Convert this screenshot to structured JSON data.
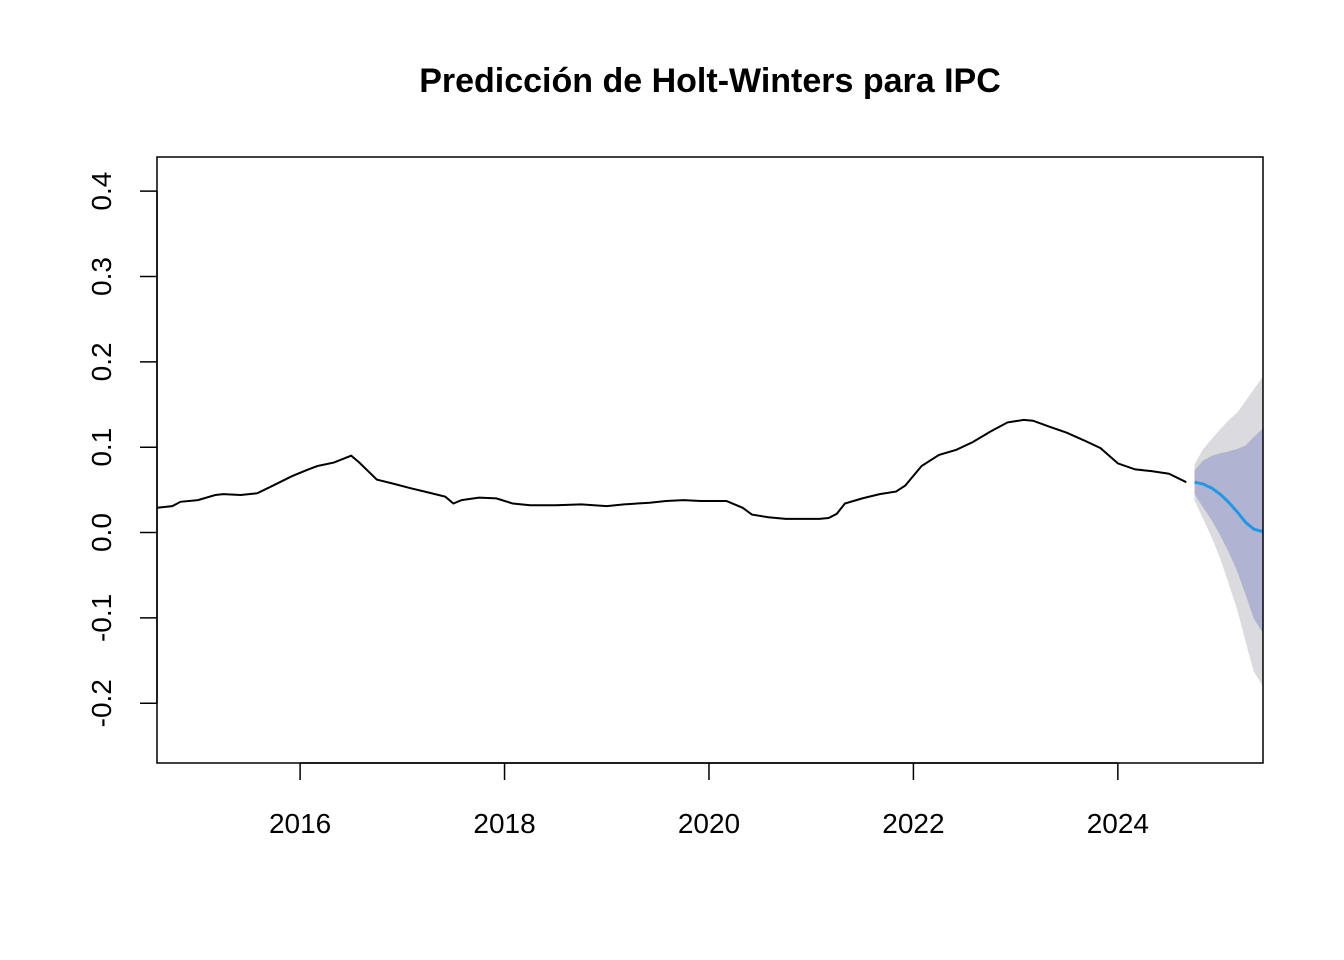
{
  "chart_data": {
    "type": "line",
    "title": "Predicción de Holt-Winters para IPC",
    "xlabel": "",
    "ylabel": "",
    "xlim": [
      2014.6,
      2025.42
    ],
    "ylim": [
      -0.27,
      0.44
    ],
    "x_ticks": [
      2016,
      2018,
      2020,
      2022,
      2024
    ],
    "x_tick_labels": [
      "2016",
      "2018",
      "2020",
      "2022",
      "2024"
    ],
    "y_ticks": [
      -0.2,
      -0.1,
      0.0,
      0.1,
      0.2,
      0.3,
      0.4
    ],
    "y_tick_labels": [
      "-0.2",
      "-0.1",
      "0.0",
      "0.1",
      "0.2",
      "0.3",
      "0.4"
    ],
    "grid": false,
    "legend": "none",
    "colors": {
      "observed": "#000000",
      "forecast": "#2297E6",
      "pi80": "#B0B4D2",
      "pi95": "#DBDBDF"
    },
    "series": [
      {
        "role": "observed",
        "x": [
          2014.6,
          2014.75,
          2014.83,
          2015.0,
          2015.17,
          2015.25,
          2015.42,
          2015.58,
          2015.75,
          2015.92,
          2016.08,
          2016.17,
          2016.33,
          2016.5,
          2016.58,
          2016.75,
          2016.92,
          2017.08,
          2017.25,
          2017.42,
          2017.5,
          2017.58,
          2017.75,
          2017.92,
          2018.08,
          2018.25,
          2018.5,
          2018.75,
          2019.0,
          2019.17,
          2019.42,
          2019.58,
          2019.75,
          2019.92,
          2020.17,
          2020.33,
          2020.42,
          2020.58,
          2020.75,
          2020.92,
          2021.08,
          2021.17,
          2021.25,
          2021.33,
          2021.5,
          2021.67,
          2021.83,
          2021.92,
          2022.08,
          2022.25,
          2022.42,
          2022.58,
          2022.75,
          2022.92,
          2023.08,
          2023.17,
          2023.33,
          2023.5,
          2023.67,
          2023.83,
          2024.0,
          2024.17,
          2024.33,
          2024.5,
          2024.67
        ],
        "values": [
          0.029,
          0.031,
          0.036,
          0.038,
          0.044,
          0.045,
          0.044,
          0.046,
          0.056,
          0.066,
          0.074,
          0.078,
          0.082,
          0.09,
          0.082,
          0.062,
          0.057,
          0.052,
          0.047,
          0.042,
          0.034,
          0.038,
          0.041,
          0.04,
          0.034,
          0.032,
          0.032,
          0.033,
          0.031,
          0.033,
          0.035,
          0.037,
          0.038,
          0.037,
          0.037,
          0.029,
          0.021,
          0.018,
          0.016,
          0.016,
          0.016,
          0.017,
          0.022,
          0.034,
          0.04,
          0.045,
          0.048,
          0.055,
          0.078,
          0.091,
          0.097,
          0.106,
          0.118,
          0.129,
          0.132,
          0.131,
          0.124,
          0.117,
          0.108,
          0.099,
          0.081,
          0.074,
          0.072,
          0.069,
          0.059
        ]
      },
      {
        "role": "forecast",
        "x": [
          2024.75,
          2024.83,
          2024.92,
          2025.0,
          2025.08,
          2025.17,
          2025.25,
          2025.33,
          2025.42
        ],
        "values": [
          0.059,
          0.057,
          0.052,
          0.045,
          0.036,
          0.024,
          0.012,
          0.004,
          0.001
        ],
        "pi80_lower": [
          0.045,
          0.03,
          0.014,
          -0.003,
          -0.022,
          -0.046,
          -0.073,
          -0.101,
          -0.118
        ],
        "pi80_upper": [
          0.073,
          0.084,
          0.09,
          0.093,
          0.095,
          0.098,
          0.102,
          0.112,
          0.122
        ],
        "pi95_lower": [
          0.038,
          0.017,
          -0.006,
          -0.03,
          -0.058,
          -0.091,
          -0.128,
          -0.163,
          -0.18
        ],
        "pi95_upper": [
          0.08,
          0.097,
          0.11,
          0.121,
          0.131,
          0.141,
          0.154,
          0.168,
          0.183
        ]
      }
    ]
  }
}
